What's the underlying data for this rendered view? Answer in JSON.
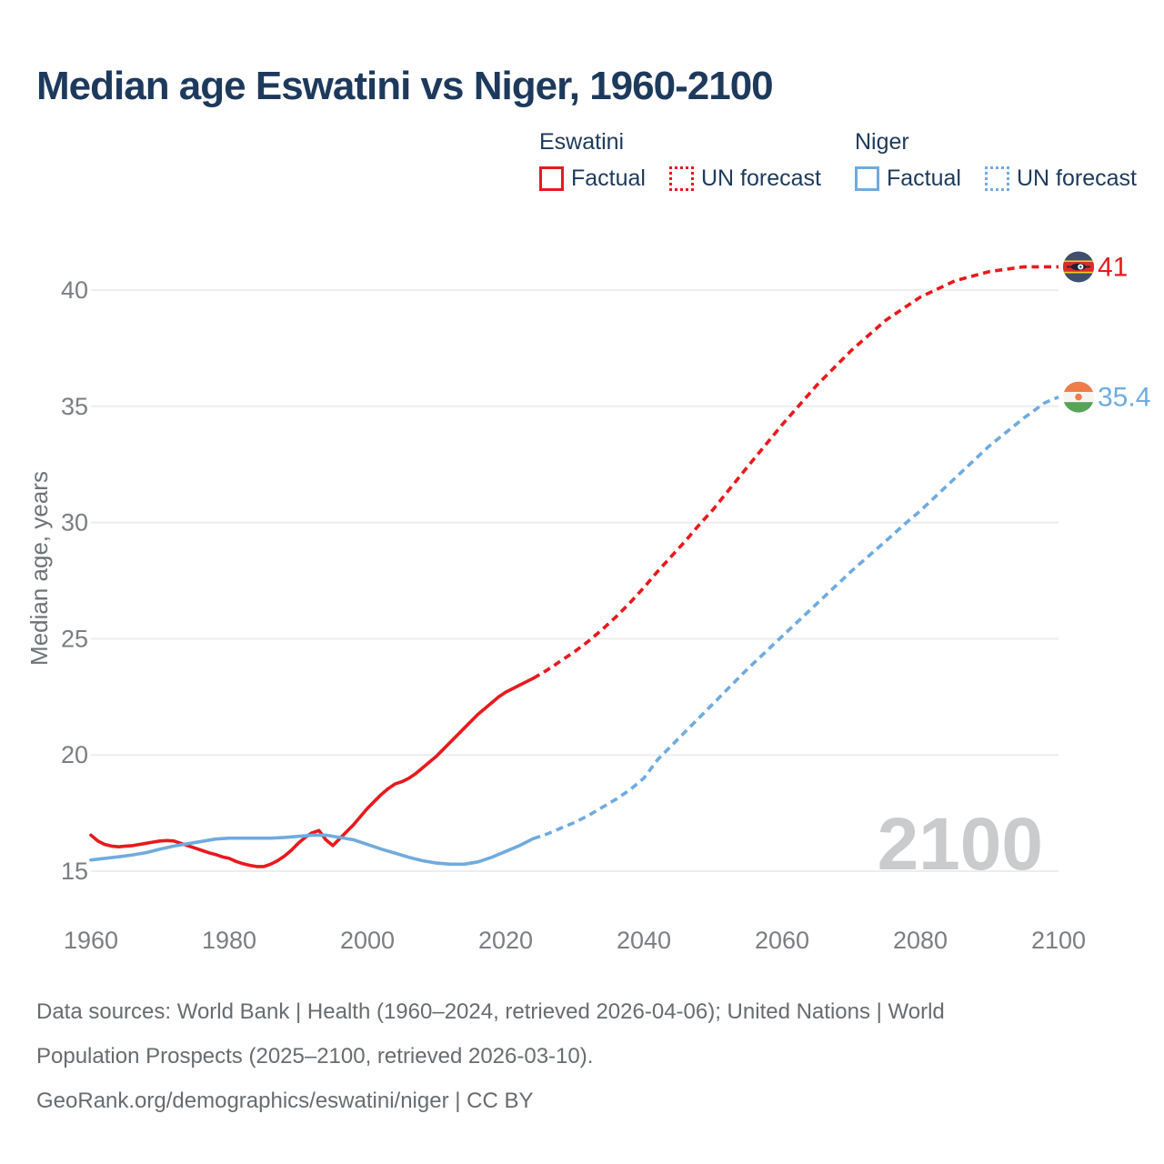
{
  "header": {
    "title": "Median age Eswatini vs Niger, 1960-2100"
  },
  "colors": {
    "eswatini": "#e8191d",
    "niger": "#6fabdf",
    "navy_text": "#1d3a5c",
    "tick_label": "#7b7e82",
    "axis_title": "#6e7377",
    "footer_text": "#676c70",
    "gridline": "#ededee",
    "watermark": "#c9cbcd"
  },
  "legend": {
    "groups": [
      {
        "name": "Eswatini",
        "color": "#e8191d",
        "items": [
          {
            "label": "Factual",
            "style": "solid"
          },
          {
            "label": "UN forecast",
            "style": "dotted"
          }
        ]
      },
      {
        "name": "Niger",
        "color": "#6fabdf",
        "items": [
          {
            "label": "Factual",
            "style": "solid"
          },
          {
            "label": "UN forecast",
            "style": "dotted"
          }
        ]
      }
    ]
  },
  "chart_data": {
    "type": "line",
    "ylabel": "Median age, years",
    "x_domain": [
      1960,
      2100
    ],
    "y_domain": [
      15,
      40
    ],
    "x_ticks": [
      1960,
      1980,
      2000,
      2020,
      2040,
      2060,
      2080,
      2100
    ],
    "y_ticks": [
      15,
      20,
      25,
      30,
      35,
      40
    ],
    "grid": true,
    "watermark": "2100",
    "series": [
      {
        "name": "Eswatini Factual",
        "country": "eswatini",
        "kind": "factual",
        "color": "#e8191d",
        "dashed": false,
        "points": [
          [
            1960,
            16.55
          ],
          [
            1961,
            16.3
          ],
          [
            1962,
            16.15
          ],
          [
            1963,
            16.08
          ],
          [
            1964,
            16.05
          ],
          [
            1965,
            16.08
          ],
          [
            1966,
            16.1
          ],
          [
            1967,
            16.15
          ],
          [
            1968,
            16.2
          ],
          [
            1969,
            16.25
          ],
          [
            1970,
            16.3
          ],
          [
            1971,
            16.32
          ],
          [
            1972,
            16.3
          ],
          [
            1973,
            16.2
          ],
          [
            1974,
            16.1
          ],
          [
            1975,
            16.0
          ],
          [
            1976,
            15.9
          ],
          [
            1977,
            15.8
          ],
          [
            1978,
            15.72
          ],
          [
            1979,
            15.62
          ],
          [
            1980,
            15.55
          ],
          [
            1981,
            15.42
          ],
          [
            1982,
            15.32
          ],
          [
            1983,
            15.25
          ],
          [
            1984,
            15.2
          ],
          [
            1985,
            15.2
          ],
          [
            1986,
            15.3
          ],
          [
            1987,
            15.45
          ],
          [
            1988,
            15.65
          ],
          [
            1989,
            15.9
          ],
          [
            1990,
            16.2
          ],
          [
            1991,
            16.45
          ],
          [
            1992,
            16.65
          ],
          [
            1993,
            16.75
          ],
          [
            1994,
            16.35
          ],
          [
            1995,
            16.1
          ],
          [
            1996,
            16.4
          ],
          [
            1997,
            16.7
          ],
          [
            1998,
            17.0
          ],
          [
            1999,
            17.35
          ],
          [
            2000,
            17.7
          ],
          [
            2001,
            18.0
          ],
          [
            2002,
            18.3
          ],
          [
            2003,
            18.55
          ],
          [
            2004,
            18.75
          ],
          [
            2005,
            18.85
          ],
          [
            2006,
            19.0
          ],
          [
            2007,
            19.2
          ],
          [
            2008,
            19.45
          ],
          [
            2009,
            19.7
          ],
          [
            2010,
            19.95
          ],
          [
            2011,
            20.25
          ],
          [
            2012,
            20.55
          ],
          [
            2013,
            20.85
          ],
          [
            2014,
            21.15
          ],
          [
            2015,
            21.45
          ],
          [
            2016,
            21.75
          ],
          [
            2017,
            22.0
          ],
          [
            2018,
            22.25
          ],
          [
            2019,
            22.5
          ],
          [
            2020,
            22.7
          ],
          [
            2021,
            22.85
          ],
          [
            2022,
            23.0
          ],
          [
            2023,
            23.15
          ],
          [
            2024,
            23.3
          ]
        ]
      },
      {
        "name": "Eswatini UN forecast",
        "country": "eswatini",
        "kind": "forecast",
        "color": "#e8191d",
        "dashed": true,
        "points": [
          [
            2024,
            23.3
          ],
          [
            2026,
            23.65
          ],
          [
            2028,
            24.05
          ],
          [
            2030,
            24.45
          ],
          [
            2032,
            24.9
          ],
          [
            2034,
            25.4
          ],
          [
            2036,
            25.95
          ],
          [
            2038,
            26.55
          ],
          [
            2040,
            27.2
          ],
          [
            2042,
            27.9
          ],
          [
            2044,
            28.55
          ],
          [
            2046,
            29.2
          ],
          [
            2048,
            29.9
          ],
          [
            2050,
            30.55
          ],
          [
            2055,
            32.4
          ],
          [
            2060,
            34.2
          ],
          [
            2065,
            35.9
          ],
          [
            2070,
            37.4
          ],
          [
            2075,
            38.7
          ],
          [
            2080,
            39.7
          ],
          [
            2085,
            40.4
          ],
          [
            2090,
            40.8
          ],
          [
            2095,
            41.0
          ],
          [
            2100,
            41.0
          ]
        ]
      },
      {
        "name": "Niger Factual",
        "country": "niger",
        "kind": "factual",
        "color": "#6fabdf",
        "dashed": false,
        "points": [
          [
            1960,
            15.48
          ],
          [
            1962,
            15.55
          ],
          [
            1964,
            15.62
          ],
          [
            1966,
            15.7
          ],
          [
            1968,
            15.8
          ],
          [
            1970,
            15.95
          ],
          [
            1972,
            16.08
          ],
          [
            1974,
            16.18
          ],
          [
            1976,
            16.28
          ],
          [
            1978,
            16.38
          ],
          [
            1980,
            16.42
          ],
          [
            1982,
            16.42
          ],
          [
            1984,
            16.42
          ],
          [
            1986,
            16.42
          ],
          [
            1988,
            16.45
          ],
          [
            1990,
            16.5
          ],
          [
            1992,
            16.55
          ],
          [
            1994,
            16.55
          ],
          [
            1996,
            16.45
          ],
          [
            1998,
            16.35
          ],
          [
            2000,
            16.15
          ],
          [
            2002,
            15.95
          ],
          [
            2004,
            15.78
          ],
          [
            2006,
            15.6
          ],
          [
            2008,
            15.45
          ],
          [
            2010,
            15.35
          ],
          [
            2012,
            15.3
          ],
          [
            2014,
            15.3
          ],
          [
            2016,
            15.4
          ],
          [
            2018,
            15.6
          ],
          [
            2020,
            15.85
          ],
          [
            2022,
            16.1
          ],
          [
            2024,
            16.4
          ]
        ]
      },
      {
        "name": "Niger UN forecast",
        "country": "niger",
        "kind": "forecast",
        "color": "#6fabdf",
        "dashed": true,
        "points": [
          [
            2024,
            16.4
          ],
          [
            2026,
            16.6
          ],
          [
            2028,
            16.85
          ],
          [
            2030,
            17.1
          ],
          [
            2032,
            17.4
          ],
          [
            2034,
            17.75
          ],
          [
            2036,
            18.1
          ],
          [
            2038,
            18.5
          ],
          [
            2040,
            19.0
          ],
          [
            2042,
            19.8
          ],
          [
            2044,
            20.4
          ],
          [
            2046,
            21.0
          ],
          [
            2048,
            21.6
          ],
          [
            2050,
            22.2
          ],
          [
            2055,
            23.7
          ],
          [
            2060,
            25.1
          ],
          [
            2065,
            26.5
          ],
          [
            2070,
            27.9
          ],
          [
            2075,
            29.2
          ],
          [
            2078,
            30.0
          ],
          [
            2080,
            30.5
          ],
          [
            2085,
            31.9
          ],
          [
            2090,
            33.3
          ],
          [
            2095,
            34.5
          ],
          [
            2098,
            35.15
          ],
          [
            2100,
            35.4
          ]
        ]
      }
    ],
    "end_labels": [
      {
        "text": "41",
        "value": 41,
        "color": "#e8191d",
        "flag": "eswatini"
      },
      {
        "text": "35.4",
        "value": 35.4,
        "color": "#6fabdf",
        "flag": "niger"
      }
    ]
  },
  "footer": {
    "lines": [
      "Data sources: World Bank | Health (1960–2024, retrieved 2026-04-06); United Nations | World",
      "Population Prospects (2025–2100, retrieved 2026-03-10).",
      "GeoRank.org/demographics/eswatini/niger | CC BY"
    ]
  }
}
